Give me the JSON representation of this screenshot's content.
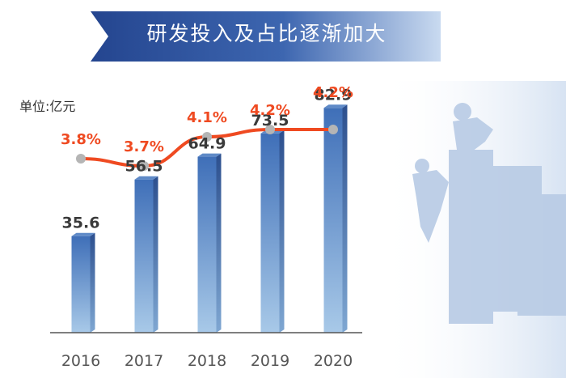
{
  "title": "研发投入及占比逐渐加大",
  "unit_label": "单位:亿元",
  "colors": {
    "bar_top": "#3f6fb8",
    "bar_bottom": "#a8c9e8",
    "line": "#ef4a21",
    "marker": "#b5b5b5",
    "banner": "#2c4f9a"
  },
  "chart_data": {
    "type": "bar",
    "categories": [
      "2016",
      "2017",
      "2018",
      "2019",
      "2020"
    ],
    "series": [
      {
        "values": [
          35.6,
          56.5,
          64.9,
          73.5,
          82.9
        ]
      },
      {
        "type": "line",
        "values": [
          3.8,
          3.7,
          4.1,
          4.2,
          4.2
        ],
        "labels": [
          "3.8%",
          "3.7%",
          "4.1%",
          "4.2%",
          "4.2%"
        ]
      }
    ],
    "ylim": [
      0,
      100
    ],
    "grid": false
  }
}
